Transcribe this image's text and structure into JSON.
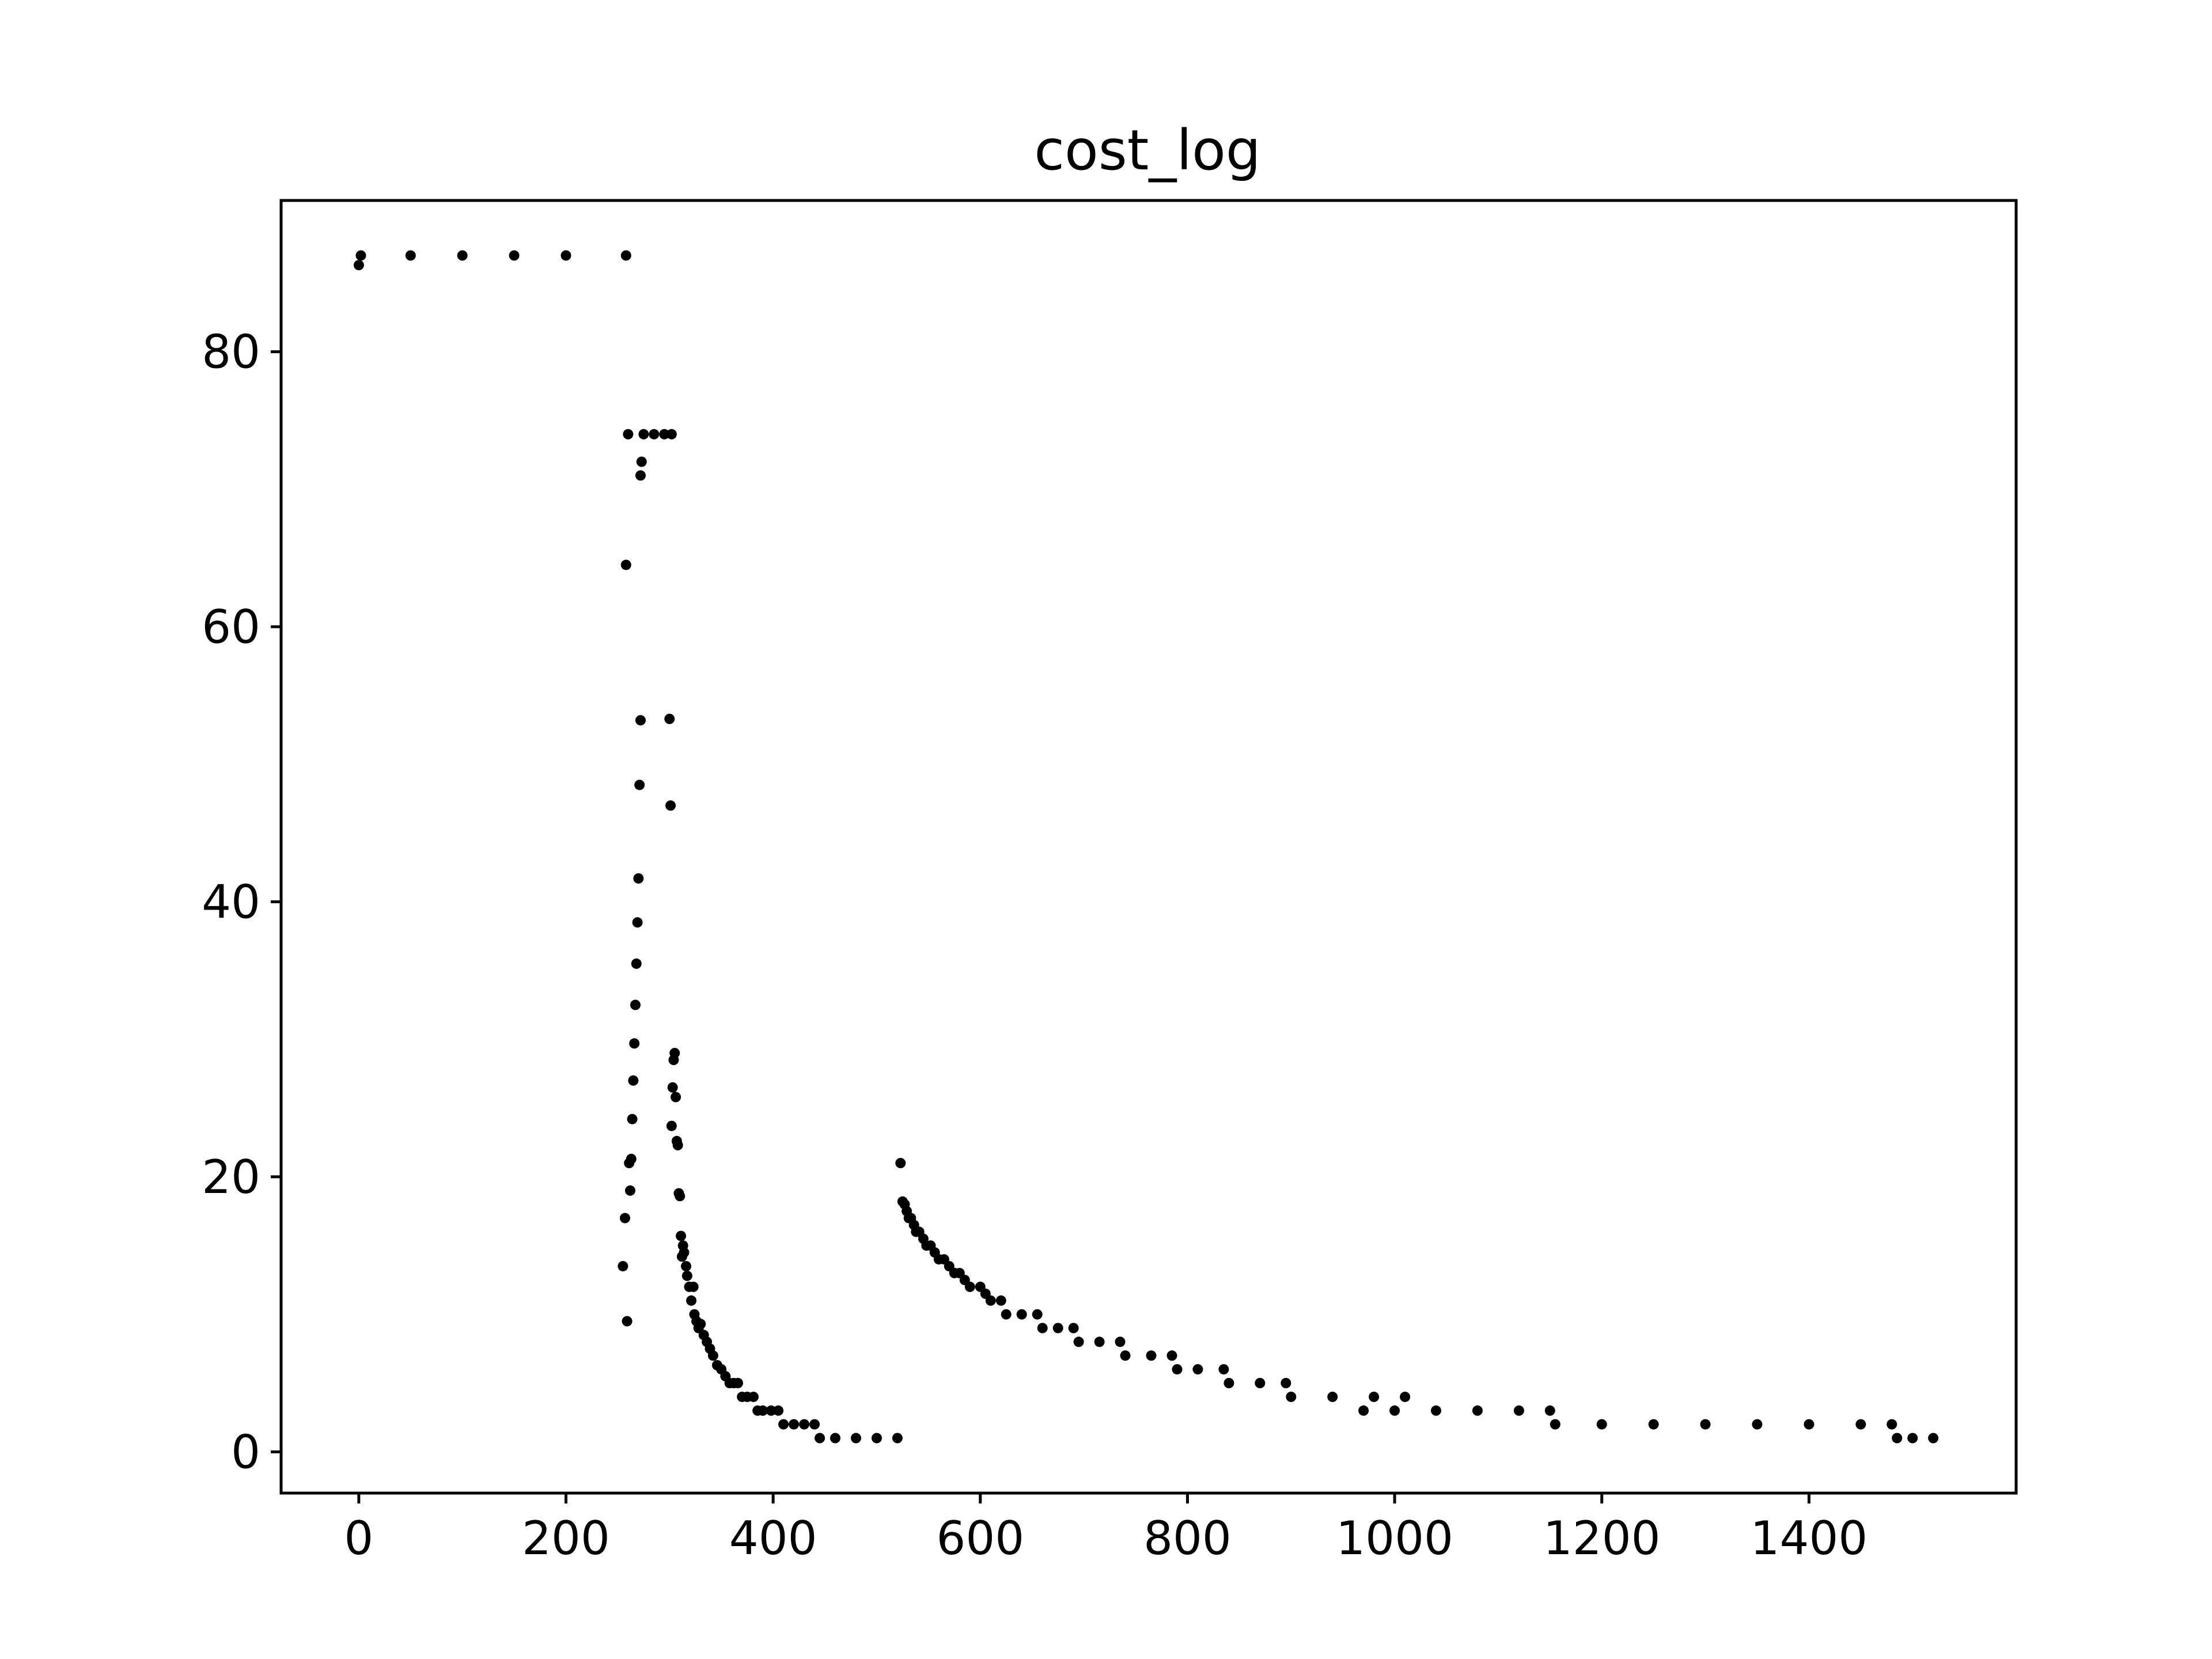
{
  "chart_data": {
    "type": "scatter",
    "title": "cost_log",
    "xlabel": "",
    "ylabel": "",
    "xlim": [
      -75,
      1600
    ],
    "ylim": [
      -3,
      91
    ],
    "xticks": [
      0,
      200,
      400,
      600,
      800,
      1000,
      1200,
      1400
    ],
    "yticks": [
      0,
      20,
      40,
      60,
      80
    ],
    "x_tick_labels": [
      "0",
      "200",
      "400",
      "600",
      "800",
      "1000",
      "1200",
      "1400"
    ],
    "y_tick_labels": [
      "0",
      "20",
      "40",
      "60",
      "80"
    ],
    "grid": false,
    "legend": "none",
    "marker_color": "#000000",
    "series": [
      {
        "name": "",
        "points": [
          [
            0,
            86.3
          ],
          [
            2,
            87
          ],
          [
            50,
            87
          ],
          [
            100,
            87
          ],
          [
            150,
            87
          ],
          [
            200,
            87
          ],
          [
            258,
            87
          ],
          [
            255,
            13.5
          ],
          [
            257,
            17
          ],
          [
            258,
            64.5
          ],
          [
            259,
            9.5
          ],
          [
            260,
            74
          ],
          [
            261,
            21
          ],
          [
            262,
            19
          ],
          [
            263,
            21.3
          ],
          [
            264,
            24.2
          ],
          [
            265,
            27
          ],
          [
            266,
            29.7
          ],
          [
            267,
            32.5
          ],
          [
            268,
            35.5
          ],
          [
            269,
            38.5
          ],
          [
            270,
            41.7
          ],
          [
            271,
            48.5
          ],
          [
            272,
            53.2
          ],
          [
            272,
            71
          ],
          [
            273,
            72
          ],
          [
            275,
            74
          ],
          [
            285,
            74
          ],
          [
            295,
            74
          ],
          [
            302,
            74
          ],
          [
            300,
            53.3
          ],
          [
            301,
            47
          ],
          [
            302,
            23.7
          ],
          [
            303,
            26.5
          ],
          [
            304,
            28.5
          ],
          [
            305,
            29
          ],
          [
            306,
            25.8
          ],
          [
            307,
            22.6
          ],
          [
            308,
            22.3
          ],
          [
            309,
            18.8
          ],
          [
            310,
            18.6
          ],
          [
            311,
            15.7
          ],
          [
            312,
            14.2
          ],
          [
            313,
            15
          ],
          [
            314,
            14.5
          ],
          [
            316,
            13.5
          ],
          [
            317,
            12.8
          ],
          [
            319,
            12
          ],
          [
            321,
            11
          ],
          [
            323,
            12
          ],
          [
            324,
            10
          ],
          [
            326,
            9.5
          ],
          [
            328,
            9
          ],
          [
            330,
            9.3
          ],
          [
            333,
            8.5
          ],
          [
            336,
            8
          ],
          [
            339,
            7.5
          ],
          [
            342,
            7
          ],
          [
            346,
            6.3
          ],
          [
            350,
            6
          ],
          [
            354,
            5.5
          ],
          [
            358,
            5
          ],
          [
            362,
            5
          ],
          [
            366,
            5
          ],
          [
            370,
            4
          ],
          [
            375,
            4
          ],
          [
            381,
            4
          ],
          [
            385,
            3
          ],
          [
            390,
            3
          ],
          [
            398,
            3
          ],
          [
            405,
            3
          ],
          [
            410,
            2
          ],
          [
            420,
            2
          ],
          [
            430,
            2
          ],
          [
            440,
            2
          ],
          [
            445,
            1
          ],
          [
            460,
            1
          ],
          [
            480,
            1
          ],
          [
            500,
            1
          ],
          [
            520,
            1
          ],
          [
            523,
            21
          ],
          [
            525,
            18.2
          ],
          [
            527,
            18
          ],
          [
            529,
            17.5
          ],
          [
            531,
            17
          ],
          [
            533,
            17
          ],
          [
            536,
            16.5
          ],
          [
            538,
            16
          ],
          [
            541,
            16
          ],
          [
            545,
            15.5
          ],
          [
            548,
            15
          ],
          [
            552,
            15
          ],
          [
            556,
            14.5
          ],
          [
            560,
            14
          ],
          [
            565,
            14
          ],
          [
            570,
            13.5
          ],
          [
            575,
            13
          ],
          [
            580,
            13
          ],
          [
            585,
            12.5
          ],
          [
            590,
            12
          ],
          [
            600,
            12
          ],
          [
            605,
            11.5
          ],
          [
            610,
            11
          ],
          [
            620,
            11
          ],
          [
            625,
            10
          ],
          [
            640,
            10
          ],
          [
            655,
            10
          ],
          [
            660,
            9
          ],
          [
            675,
            9
          ],
          [
            690,
            9
          ],
          [
            695,
            8
          ],
          [
            715,
            8
          ],
          [
            735,
            8
          ],
          [
            740,
            7
          ],
          [
            765,
            7
          ],
          [
            785,
            7
          ],
          [
            790,
            6
          ],
          [
            810,
            6
          ],
          [
            835,
            6
          ],
          [
            840,
            5
          ],
          [
            870,
            5
          ],
          [
            895,
            5
          ],
          [
            900,
            4
          ],
          [
            940,
            4
          ],
          [
            980,
            4
          ],
          [
            1010,
            4
          ],
          [
            970,
            3
          ],
          [
            1000,
            3
          ],
          [
            1040,
            3
          ],
          [
            1080,
            3
          ],
          [
            1120,
            3
          ],
          [
            1150,
            3
          ],
          [
            1155,
            2
          ],
          [
            1200,
            2
          ],
          [
            1250,
            2
          ],
          [
            1300,
            2
          ],
          [
            1350,
            2
          ],
          [
            1400,
            2
          ],
          [
            1450,
            2
          ],
          [
            1480,
            2
          ],
          [
            1485,
            1
          ],
          [
            1500,
            1
          ],
          [
            1520,
            1
          ]
        ]
      }
    ]
  }
}
